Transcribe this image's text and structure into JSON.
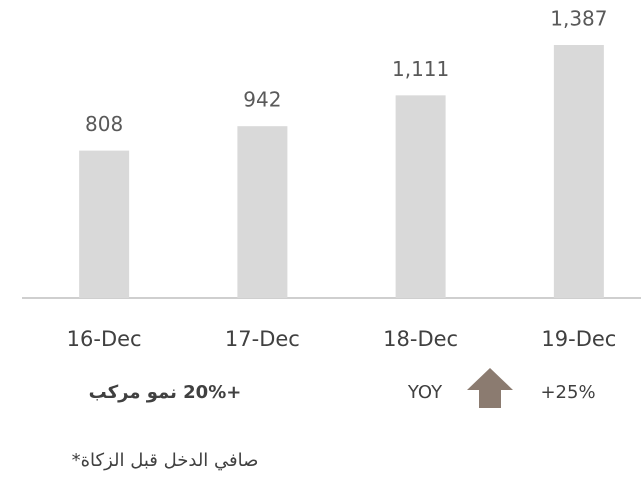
{
  "chart_data": {
    "type": "bar",
    "categories": [
      "16-Dec",
      "17-Dec",
      "18-Dec",
      "19-Dec"
    ],
    "values": [
      808,
      942,
      1111,
      1387
    ],
    "value_labels": [
      "808",
      "942",
      "1,111",
      "1,387"
    ],
    "color": "#d9d9d9",
    "annotations": [
      "+20% نمو مركب",
      "YOY",
      "+25%",
      "صافي الدخل قبل الزكاة*"
    ]
  }
}
